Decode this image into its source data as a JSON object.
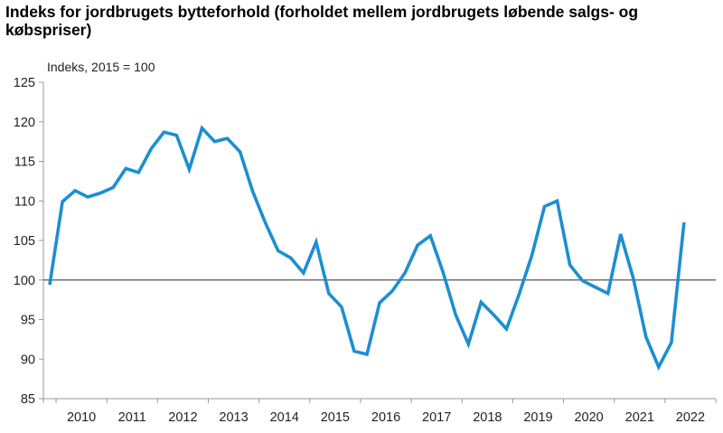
{
  "chart_data": {
    "type": "line",
    "title": "Indeks for jordbrugets bytteforhold (forholdet mellem jordbrugets løbende salgs- og købspriser)",
    "ylabel": "Indeks, 2015 = 100",
    "xlabel": "",
    "ylim": [
      85,
      125
    ],
    "yticks": [
      "85",
      "90",
      "95",
      "100",
      "105",
      "110",
      "115",
      "120",
      "125"
    ],
    "x_categories": [
      "2010",
      "2011",
      "2012",
      "2013",
      "2014",
      "2015",
      "2016",
      "2017",
      "2018",
      "2019",
      "2020",
      "2021",
      "2022"
    ],
    "reference_line": 100,
    "grid": false,
    "legend": "none",
    "colors": {
      "line": "#1b8fd2",
      "reference": "#555555",
      "axis": "#999999"
    },
    "series": [
      {
        "x": [
          "2009 Q4",
          "2010 Q1",
          "2010 Q2",
          "2010 Q3",
          "2010 Q4",
          "2011 Q1",
          "2011 Q2",
          "2011 Q3",
          "2011 Q4",
          "2012 Q1",
          "2012 Q2",
          "2012 Q3",
          "2012 Q4",
          "2013 Q1",
          "2013 Q2",
          "2013 Q3",
          "2013 Q4",
          "2014 Q1",
          "2014 Q2",
          "2014 Q3",
          "2014 Q4",
          "2015 Q1",
          "2015 Q2",
          "2015 Q3",
          "2015 Q4",
          "2016 Q1",
          "2016 Q2",
          "2016 Q3",
          "2016 Q4",
          "2017 Q1",
          "2017 Q2",
          "2017 Q3",
          "2017 Q4",
          "2018 Q1",
          "2018 Q2",
          "2018 Q3",
          "2018 Q4",
          "2019 Q1",
          "2019 Q2",
          "2019 Q3",
          "2019 Q4",
          "2020 Q1",
          "2020 Q2",
          "2020 Q3",
          "2020 Q4",
          "2021 Q1",
          "2021 Q2",
          "2021 Q3",
          "2021 Q4",
          "2022 Q1",
          "2022 Q2"
        ],
        "values": [
          99.4,
          109.9,
          111.3,
          110.5,
          111.0,
          111.7,
          114.1,
          113.6,
          116.6,
          118.7,
          118.3,
          114.0,
          119.2,
          117.5,
          117.9,
          116.2,
          111.2,
          107.2,
          103.7,
          102.8,
          100.9,
          104.8,
          98.3,
          96.6,
          91.0,
          90.6,
          97.1,
          98.6,
          100.9,
          104.4,
          105.6,
          101.0,
          95.6,
          91.9,
          97.2,
          95.6,
          93.8,
          98.2,
          103.1,
          109.3,
          110.0,
          101.9,
          99.9,
          99.1,
          98.3,
          105.8,
          100.2,
          92.8,
          89.0,
          92.1,
          107.3
        ]
      }
    ]
  }
}
